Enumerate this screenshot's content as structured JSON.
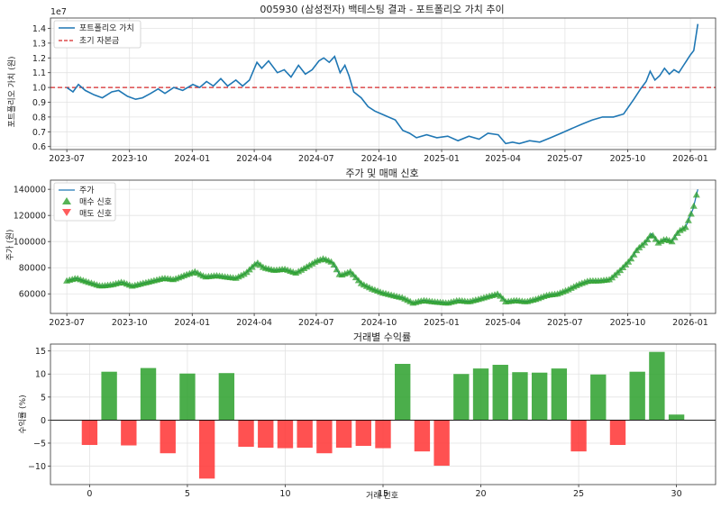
{
  "chart_data": [
    {
      "type": "line",
      "title": "005930 (삼성전자) 백테스팅 결과 - 포트폴리오 가치 추이",
      "ylabel": "포트폴리오 가치 (원)",
      "y_scale_label": "1e7",
      "x_tick_labels": [
        "2023-07",
        "2023-10",
        "2024-01",
        "2024-04",
        "2024-07",
        "2024-10",
        "2025-01",
        "2025-04",
        "2025-07",
        "2025-10",
        "2026-01"
      ],
      "y_ticks": [
        0.6,
        0.7,
        0.8,
        0.9,
        1.0,
        1.1,
        1.2,
        1.3,
        1.4
      ],
      "y_tick_labels": [
        "0.6",
        "0.7",
        "0.8",
        "0.9",
        "1.0",
        "1.1",
        "1.2",
        "1.3",
        "1.4"
      ],
      "xlim": [
        "2023-06-07",
        "2026-02-07"
      ],
      "ylim": [
        0.58,
        1.47
      ],
      "grid": true,
      "legend_position": "top-left",
      "colors": {
        "portfolio": "#1f77b4",
        "capital": "#d62728"
      },
      "series": [
        {
          "name": "포트폴리오 가치",
          "style": "solid",
          "points": [
            [
              "2023-07-01",
              1.0
            ],
            [
              "2023-07-10",
              0.97
            ],
            [
              "2023-07-18",
              1.02
            ],
            [
              "2023-07-28",
              0.98
            ],
            [
              "2023-08-10",
              0.95
            ],
            [
              "2023-08-22",
              0.93
            ],
            [
              "2023-09-05",
              0.97
            ],
            [
              "2023-09-15",
              0.98
            ],
            [
              "2023-09-28",
              0.94
            ],
            [
              "2023-10-10",
              0.92
            ],
            [
              "2023-10-20",
              0.93
            ],
            [
              "2023-11-01",
              0.96
            ],
            [
              "2023-11-12",
              0.99
            ],
            [
              "2023-11-22",
              0.96
            ],
            [
              "2023-12-05",
              1.0
            ],
            [
              "2023-12-18",
              0.98
            ],
            [
              "2024-01-02",
              1.02
            ],
            [
              "2024-01-12",
              1.0
            ],
            [
              "2024-01-22",
              1.04
            ],
            [
              "2024-02-01",
              1.01
            ],
            [
              "2024-02-12",
              1.06
            ],
            [
              "2024-02-22",
              1.01
            ],
            [
              "2024-03-05",
              1.05
            ],
            [
              "2024-03-15",
              1.01
            ],
            [
              "2024-03-25",
              1.05
            ],
            [
              "2024-04-05",
              1.17
            ],
            [
              "2024-04-12",
              1.13
            ],
            [
              "2024-04-22",
              1.18
            ],
            [
              "2024-05-05",
              1.1
            ],
            [
              "2024-05-15",
              1.12
            ],
            [
              "2024-05-25",
              1.07
            ],
            [
              "2024-06-05",
              1.15
            ],
            [
              "2024-06-15",
              1.09
            ],
            [
              "2024-06-25",
              1.12
            ],
            [
              "2024-07-05",
              1.18
            ],
            [
              "2024-07-12",
              1.2
            ],
            [
              "2024-07-20",
              1.17
            ],
            [
              "2024-07-28",
              1.21
            ],
            [
              "2024-08-05",
              1.1
            ],
            [
              "2024-08-12",
              1.15
            ],
            [
              "2024-08-18",
              1.08
            ],
            [
              "2024-08-25",
              0.97
            ],
            [
              "2024-09-05",
              0.93
            ],
            [
              "2024-09-15",
              0.87
            ],
            [
              "2024-09-25",
              0.84
            ],
            [
              "2024-10-05",
              0.82
            ],
            [
              "2024-10-15",
              0.8
            ],
            [
              "2024-10-25",
              0.78
            ],
            [
              "2024-11-05",
              0.71
            ],
            [
              "2024-11-15",
              0.69
            ],
            [
              "2024-11-25",
              0.66
            ],
            [
              "2024-12-10",
              0.68
            ],
            [
              "2024-12-25",
              0.66
            ],
            [
              "2025-01-10",
              0.67
            ],
            [
              "2025-01-25",
              0.64
            ],
            [
              "2025-02-10",
              0.67
            ],
            [
              "2025-02-25",
              0.65
            ],
            [
              "2025-03-10",
              0.69
            ],
            [
              "2025-03-25",
              0.68
            ],
            [
              "2025-04-05",
              0.62
            ],
            [
              "2025-04-15",
              0.63
            ],
            [
              "2025-04-25",
              0.62
            ],
            [
              "2025-05-10",
              0.64
            ],
            [
              "2025-05-25",
              0.63
            ],
            [
              "2025-06-10",
              0.66
            ],
            [
              "2025-06-25",
              0.69
            ],
            [
              "2025-07-10",
              0.72
            ],
            [
              "2025-07-25",
              0.75
            ],
            [
              "2025-08-10",
              0.78
            ],
            [
              "2025-08-25",
              0.8
            ],
            [
              "2025-09-10",
              0.8
            ],
            [
              "2025-09-25",
              0.82
            ],
            [
              "2025-10-10",
              0.92
            ],
            [
              "2025-10-20",
              0.99
            ],
            [
              "2025-10-28",
              1.04
            ],
            [
              "2025-11-03",
              1.11
            ],
            [
              "2025-11-10",
              1.05
            ],
            [
              "2025-11-17",
              1.08
            ],
            [
              "2025-11-24",
              1.13
            ],
            [
              "2025-12-01",
              1.09
            ],
            [
              "2025-12-08",
              1.12
            ],
            [
              "2025-12-15",
              1.1
            ],
            [
              "2025-12-22",
              1.15
            ],
            [
              "2026-01-01",
              1.22
            ],
            [
              "2026-01-06",
              1.25
            ],
            [
              "2026-01-12",
              1.43
            ]
          ]
        },
        {
          "name": "초기 자본금",
          "style": "dashed",
          "points": [
            [
              "2023-06-07",
              1.0
            ],
            [
              "2026-02-07",
              1.0
            ]
          ]
        }
      ]
    },
    {
      "type": "line",
      "title": "주가 및 매매 신호",
      "ylabel": "주가 (원)",
      "x_tick_labels": [
        "2023-07",
        "2023-10",
        "2024-01",
        "2024-04",
        "2024-07",
        "2024-10",
        "2025-01",
        "2025-04",
        "2025-07",
        "2025-10",
        "2026-01"
      ],
      "y_ticks": [
        60000,
        80000,
        100000,
        120000,
        140000
      ],
      "y_tick_labels": [
        "60000",
        "80000",
        "100000",
        "120000",
        "140000"
      ],
      "xlim": [
        "2023-06-07",
        "2026-02-07"
      ],
      "ylim": [
        45000,
        147000
      ],
      "grid": true,
      "legend_position": "top-left",
      "colors": {
        "price": "#1f77b4",
        "buy": "#2ca02c",
        "sell": "#ff3333"
      },
      "series": [
        {
          "name": "주가",
          "points": [
            [
              "2023-07-01",
              70000
            ],
            [
              "2023-07-15",
              72000
            ],
            [
              "2023-08-01",
              69000
            ],
            [
              "2023-08-20",
              66000
            ],
            [
              "2023-09-05",
              67000
            ],
            [
              "2023-09-20",
              69000
            ],
            [
              "2023-10-05",
              66000
            ],
            [
              "2023-10-20",
              68000
            ],
            [
              "2023-11-05",
              70000
            ],
            [
              "2023-11-20",
              72000
            ],
            [
              "2023-12-05",
              71000
            ],
            [
              "2023-12-20",
              74000
            ],
            [
              "2024-01-05",
              77000
            ],
            [
              "2024-01-20",
              73000
            ],
            [
              "2024-02-05",
              74000
            ],
            [
              "2024-02-20",
              73000
            ],
            [
              "2024-03-05",
              72000
            ],
            [
              "2024-03-20",
              76000
            ],
            [
              "2024-04-05",
              84000
            ],
            [
              "2024-04-15",
              80000
            ],
            [
              "2024-05-01",
              78000
            ],
            [
              "2024-05-15",
              79000
            ],
            [
              "2024-06-01",
              76000
            ],
            [
              "2024-06-15",
              80000
            ],
            [
              "2024-07-01",
              85000
            ],
            [
              "2024-07-12",
              87000
            ],
            [
              "2024-07-25",
              84000
            ],
            [
              "2024-08-05",
              74000
            ],
            [
              "2024-08-20",
              77000
            ],
            [
              "2024-09-05",
              68000
            ],
            [
              "2024-09-20",
              64000
            ],
            [
              "2024-10-05",
              61000
            ],
            [
              "2024-10-20",
              59000
            ],
            [
              "2024-11-05",
              57000
            ],
            [
              "2024-11-20",
              53000
            ],
            [
              "2024-12-05",
              55000
            ],
            [
              "2024-12-20",
              54000
            ],
            [
              "2025-01-10",
              53000
            ],
            [
              "2025-01-25",
              55000
            ],
            [
              "2025-02-10",
              54000
            ],
            [
              "2025-02-25",
              56000
            ],
            [
              "2025-03-10",
              58000
            ],
            [
              "2025-03-25",
              60000
            ],
            [
              "2025-04-05",
              54000
            ],
            [
              "2025-04-20",
              55000
            ],
            [
              "2025-05-05",
              54000
            ],
            [
              "2025-05-20",
              56000
            ],
            [
              "2025-06-05",
              59000
            ],
            [
              "2025-06-20",
              60000
            ],
            [
              "2025-07-05",
              63000
            ],
            [
              "2025-07-20",
              67000
            ],
            [
              "2025-08-05",
              70000
            ],
            [
              "2025-08-20",
              70000
            ],
            [
              "2025-09-05",
              71000
            ],
            [
              "2025-09-20",
              78000
            ],
            [
              "2025-10-05",
              86000
            ],
            [
              "2025-10-15",
              94000
            ],
            [
              "2025-10-28",
              100000
            ],
            [
              "2025-11-05",
              106000
            ],
            [
              "2025-11-15",
              99000
            ],
            [
              "2025-11-25",
              102000
            ],
            [
              "2025-12-05",
              100000
            ],
            [
              "2025-12-15",
              108000
            ],
            [
              "2025-12-25",
              111000
            ],
            [
              "2026-01-05",
              125000
            ],
            [
              "2026-01-12",
              140000
            ]
          ]
        },
        {
          "name": "매수 신호",
          "marker": "triangle-up"
        },
        {
          "name": "매도 신호",
          "marker": "triangle-down"
        }
      ]
    },
    {
      "type": "bar",
      "title": "거래별 수익률",
      "xlabel": "거래 번호",
      "ylabel": "수익률 (%)",
      "x_ticks": [
        0,
        5,
        10,
        15,
        20,
        25,
        30
      ],
      "x_tick_labels": [
        "0",
        "5",
        "10",
        "15",
        "20",
        "25",
        "30"
      ],
      "y_ticks": [
        -10,
        -5,
        0,
        5,
        10,
        15
      ],
      "y_tick_labels": [
        "−10",
        "−5",
        "0",
        "5",
        "10",
        "15"
      ],
      "xlim": [
        -2,
        32
      ],
      "ylim": [
        -14,
        16.5
      ],
      "grid": true,
      "colors": {
        "positive": "#2ca02c",
        "negative": "#ff3333"
      },
      "x": [
        0,
        1,
        2,
        3,
        4,
        5,
        6,
        7,
        8,
        9,
        10,
        11,
        12,
        13,
        14,
        15,
        16,
        17,
        18,
        19,
        20,
        21,
        22,
        23,
        24,
        25,
        26,
        27,
        28,
        29,
        30
      ],
      "values": [
        -5.4,
        10.5,
        -5.5,
        11.3,
        -7.2,
        10.1,
        -12.7,
        10.2,
        -5.8,
        -6.0,
        -6.1,
        -6.0,
        -7.2,
        -6.0,
        -5.6,
        -6.1,
        12.2,
        -6.8,
        -9.9,
        10.0,
        11.2,
        12.0,
        10.4,
        10.3,
        11.2,
        -6.8,
        9.9,
        -5.4,
        10.5,
        14.8,
        1.2
      ]
    }
  ]
}
